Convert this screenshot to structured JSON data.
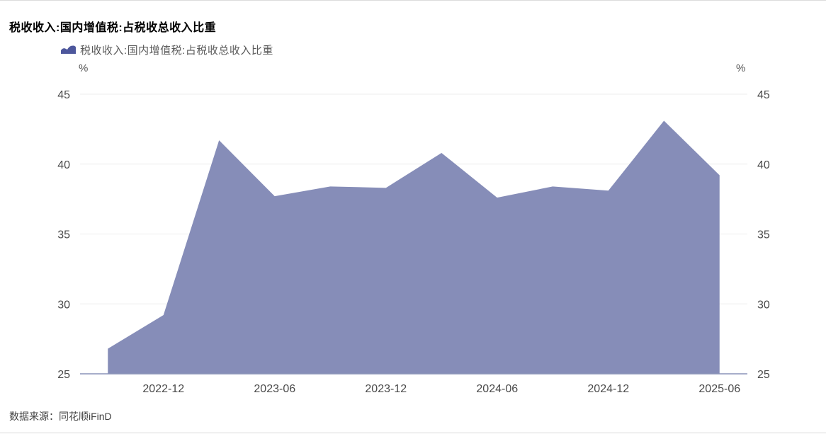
{
  "header": {
    "title": "税收收入:国内增值税:占税收总收入比重"
  },
  "legend": {
    "label": "税收收入:国内增值税:占税收总收入比重",
    "marker_icon": "area-chart-icon"
  },
  "footer": {
    "source_label": "数据来源：",
    "source_value": "同花顺iFinD"
  },
  "chart_data": {
    "type": "area",
    "title": "税收收入:国内增值税:占税收总收入比重",
    "series_name": "税收收入:国内增值税:占税收总收入比重",
    "ylabel": "%",
    "xlabel": "",
    "x": [
      "2022-09",
      "2022-12",
      "2023-03",
      "2023-06",
      "2023-09",
      "2023-12",
      "2024-03",
      "2024-06",
      "2024-09",
      "2024-12",
      "2025-03",
      "2025-06"
    ],
    "values": [
      26.8,
      29.2,
      41.7,
      37.7,
      38.4,
      38.3,
      40.8,
      37.6,
      38.4,
      38.1,
      43.1,
      39.2
    ],
    "ylim": [
      25,
      45
    ],
    "yticks": [
      25,
      30,
      35,
      40,
      45
    ],
    "xtick_indices": [
      1,
      3,
      5,
      7,
      9,
      11
    ],
    "grid": true,
    "legend_position": "top-left",
    "colors": {
      "area_fill": "#868DB8",
      "legend_marker": "#4D579C",
      "axis_line": "#8A93B8",
      "grid_line": "#EEEEEE",
      "tick_text": "#4A4A4A"
    }
  }
}
